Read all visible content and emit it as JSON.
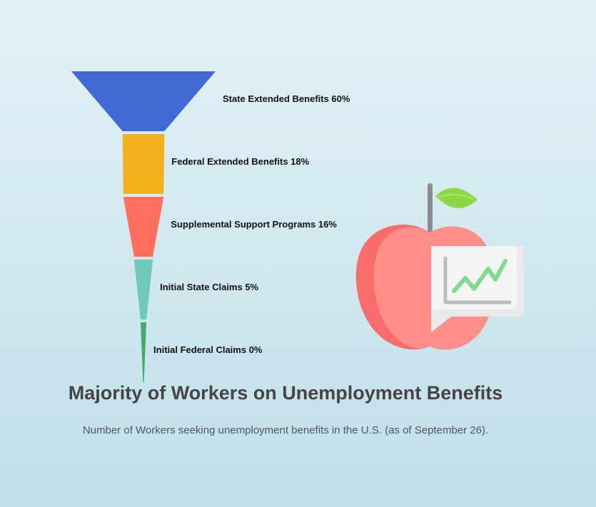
{
  "chart_data": {
    "type": "funnel",
    "title": "Majority of Workers on Unemployment Benefits",
    "subtitle": "Number of Workers seeking unemployment benefits in the U.S. (as of September 26).",
    "categories": [
      "State Extended Benefits",
      "Federal Extended Benefits",
      "Supplemental Support Programs",
      "Initial State Claims",
      "Initial Federal Claims"
    ],
    "values": [
      60,
      18,
      16,
      5,
      0
    ],
    "labels": [
      "State Extended Benefits 60%",
      "Federal Extended Benefits 18%",
      "Supplemental Support Programs 16%",
      "Initial State Claims 5%",
      "Initial Federal Claims 0%"
    ],
    "unit": "%",
    "colors": [
      "#4169d4",
      "#f2b11c",
      "#ff6f5b",
      "#6fc9b6",
      "#3fae6a"
    ],
    "legend": "none",
    "grid": false
  },
  "illustration": {
    "icon": "apple-chart-icon",
    "colors": {
      "apple_main": "#fd8e8a",
      "apple_shade": "#f86c6c",
      "leaf": "#8fd645",
      "stem": "#8f8a91",
      "panel": "#eaeaea",
      "trend": "#7fdc8f",
      "axis": "#bdbdbd"
    }
  }
}
